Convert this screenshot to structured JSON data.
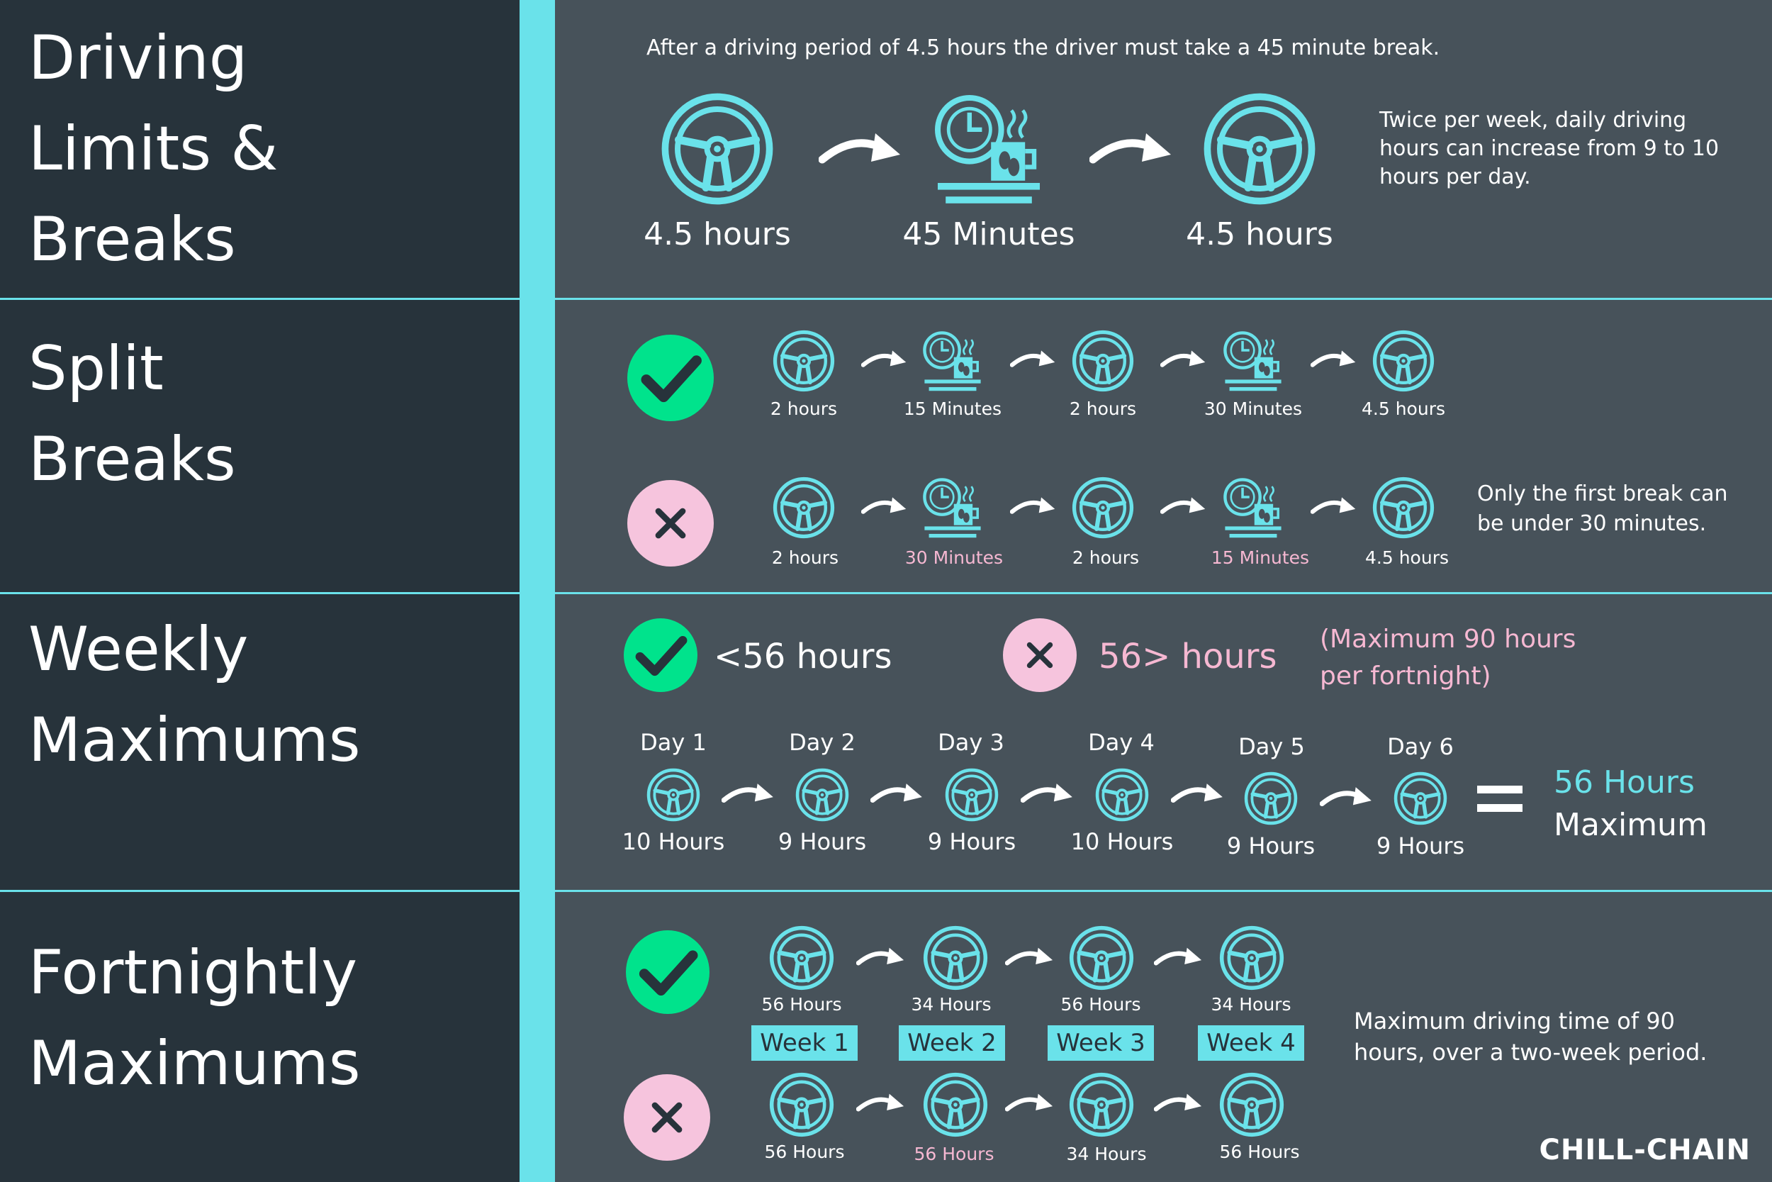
{
  "sections": {
    "s1_title": [
      "Driving",
      "Limits &",
      "Breaks"
    ],
    "s2_title": [
      "Split",
      "Breaks"
    ],
    "s3_title": [
      "Weekly",
      "Maximums"
    ],
    "s4_title": [
      "Fortnightly",
      "Maximums"
    ]
  },
  "driving": {
    "intro": "After a driving period of 4.5 hours the driver must take a 45 minute break.",
    "labels": [
      "4.5 hours",
      "45 Minutes",
      "4.5 hours"
    ],
    "note": [
      "Twice per week, daily driving",
      "hours can increase from 9 to 10",
      "hours per day."
    ]
  },
  "split": {
    "correct": [
      "2 hours",
      "15 Minutes",
      "2 hours",
      "30 Minutes",
      "4.5 hours"
    ],
    "wrong": [
      "2 hours",
      "30 Minutes",
      "2 hours",
      "15 Minutes",
      "4.5 hours"
    ],
    "note": [
      "Only the first break can",
      "be under 30 minutes."
    ]
  },
  "weekly": {
    "ok_label": "<56 hours",
    "bad_label": "56> hours",
    "paren": [
      "(Maximum 90 hours",
      "per fortnight)"
    ],
    "days": [
      "Day 1",
      "Day 2",
      "Day 3",
      "Day 4",
      "Day 5",
      "Day 6"
    ],
    "hours": [
      "10 Hours",
      "9 Hours",
      "9 Hours",
      "10 Hours",
      "9 Hours",
      "9 Hours"
    ],
    "total_value": "56 Hours",
    "total_label": "Maximum"
  },
  "fortnightly": {
    "correct": [
      "56 Hours",
      "34 Hours",
      "56 Hours",
      "34 Hours"
    ],
    "weeks": [
      "Week 1",
      "Week 2",
      "Week 3",
      "Week 4"
    ],
    "wrong": [
      "56 Hours",
      "56 Hours",
      "34 Hours",
      "56 Hours"
    ],
    "note": [
      "Maximum driving time of 90",
      "hours, over a two-week period."
    ]
  },
  "brand": "CHILL-CHAIN",
  "colors": {
    "accent": "#6ae2ea",
    "check": "#00e38c",
    "cross": "#f6c4dd",
    "dark": "#27333b",
    "panel": "#47525a",
    "pink_text": "#f6b8d2"
  }
}
